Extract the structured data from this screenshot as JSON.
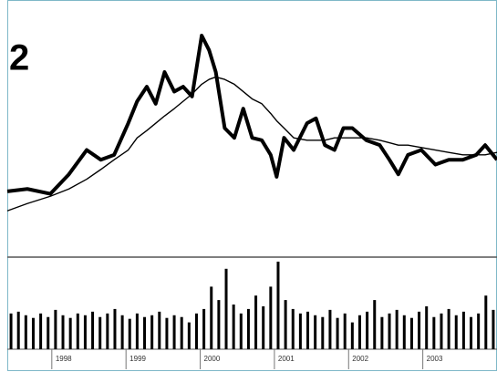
{
  "chart_data": [
    {
      "type": "line",
      "title": "2",
      "x": [
        1997.4,
        1997.67,
        1997.98,
        1998.23,
        1998.47,
        1998.66,
        1998.84,
        1999.03,
        1999.15,
        1999.28,
        1999.4,
        1999.52,
        1999.65,
        1999.77,
        1999.89,
        2000.02,
        2000.12,
        2000.21,
        2000.33,
        2000.46,
        2000.58,
        2000.7,
        2000.83,
        2000.95,
        2001.03,
        2001.13,
        2001.26,
        2001.44,
        2001.56,
        2001.68,
        2001.81,
        2001.93,
        2002.05,
        2002.24,
        2002.42,
        2002.55,
        2002.67,
        2002.8,
        2002.98,
        2003.17,
        2003.35,
        2003.54,
        2003.72,
        2003.84,
        2004.0
      ],
      "series": [
        {
          "color": "#000000",
          "values": [
            27,
            28,
            26,
            34,
            44,
            40,
            42,
            55,
            64,
            70,
            63,
            76,
            68,
            70,
            66,
            91,
            85,
            76,
            53,
            49,
            61,
            49,
            48,
            42,
            33,
            49,
            44,
            55,
            57,
            46,
            44,
            53,
            53,
            48,
            46,
            40,
            34,
            42,
            44,
            38,
            40,
            40,
            42,
            46,
            40
          ]
        },
        {
          "color": "#000000",
          "values": [
            19,
            22,
            25,
            28,
            32,
            36,
            40,
            44,
            49,
            52,
            55,
            58,
            61,
            64,
            67,
            71,
            73,
            74,
            73,
            71,
            68,
            65,
            63,
            59,
            56,
            53,
            49,
            48,
            48,
            48,
            49,
            49,
            49,
            49,
            48,
            47,
            46,
            46,
            45,
            44,
            43,
            42,
            42,
            42,
            43
          ]
        }
      ],
      "xlim": [
        1997.4,
        2004.0
      ],
      "ylim": [
        0,
        100
      ]
    },
    {
      "type": "bar",
      "color": "#000000",
      "x": [
        1997.45,
        1997.55,
        1997.65,
        1997.75,
        1997.85,
        1997.95,
        1998.05,
        1998.15,
        1998.25,
        1998.35,
        1998.45,
        1998.55,
        1998.65,
        1998.75,
        1998.85,
        1998.95,
        1999.05,
        1999.15,
        1999.25,
        1999.35,
        1999.45,
        1999.55,
        1999.65,
        1999.75,
        1999.85,
        1999.95,
        2000.05,
        2000.15,
        2000.25,
        2000.35,
        2000.45,
        2000.55,
        2000.65,
        2000.75,
        2000.85,
        2000.95,
        2001.05,
        2001.15,
        2001.25,
        2001.35,
        2001.45,
        2001.55,
        2001.65,
        2001.75,
        2001.85,
        2001.95,
        2002.05,
        2002.15,
        2002.25,
        2002.35,
        2002.45,
        2002.55,
        2002.65,
        2002.75,
        2002.85,
        2002.95,
        2003.05,
        2003.15,
        2003.25,
        2003.35,
        2003.45,
        2003.55,
        2003.65,
        2003.75,
        2003.85,
        2003.95
      ],
      "values": [
        40,
        42,
        38,
        35,
        40,
        36,
        44,
        38,
        35,
        40,
        38,
        42,
        36,
        40,
        45,
        38,
        34,
        40,
        36,
        38,
        42,
        35,
        38,
        36,
        30,
        40,
        45,
        70,
        55,
        90,
        50,
        40,
        45,
        60,
        48,
        70,
        98,
        55,
        45,
        40,
        42,
        38,
        36,
        44,
        35,
        40,
        30,
        38,
        42,
        55,
        36,
        40,
        44,
        38,
        35,
        42,
        48,
        36,
        40,
        45,
        38,
        42,
        36,
        40,
        60,
        44
      ],
      "xlim": [
        1997.4,
        2004.0
      ],
      "ylim": [
        0,
        100
      ],
      "xticks": [
        1998,
        1999,
        2000,
        2001,
        2002,
        2003
      ]
    }
  ]
}
